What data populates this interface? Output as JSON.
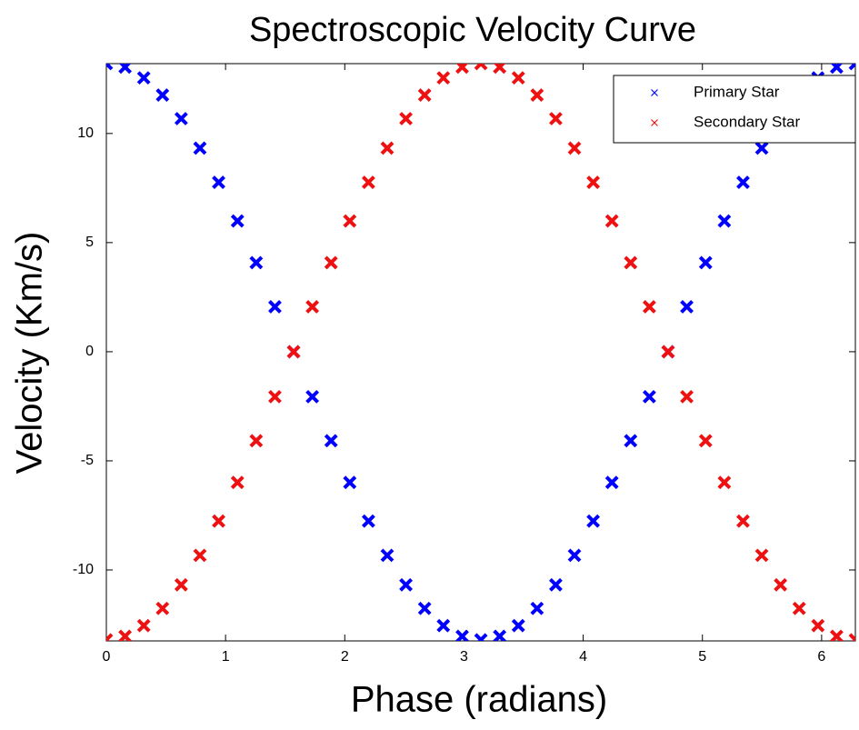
{
  "chart_data": {
    "type": "scatter",
    "title": "Spectroscopic Velocity Curve",
    "x_label": "Phase (radians)",
    "y_label": "Velocity (Km/s)",
    "x": [
      0,
      0.157,
      0.314,
      0.471,
      0.628,
      0.785,
      0.942,
      1.1,
      1.257,
      1.414,
      1.571,
      1.728,
      1.885,
      2.042,
      2.199,
      2.356,
      2.513,
      2.67,
      2.827,
      2.985,
      3.142,
      3.299,
      3.456,
      3.613,
      3.77,
      3.927,
      4.084,
      4.241,
      4.398,
      4.555,
      4.712,
      4.869,
      5.027,
      5.184,
      5.341,
      5.498,
      5.655,
      5.812,
      5.969,
      6.126,
      6.283
    ],
    "series": [
      {
        "name": "Primary Star",
        "color": "#0000ff",
        "values": [
          13.2,
          13.04,
          12.55,
          11.76,
          10.68,
          9.33,
          7.76,
          5.99,
          4.08,
          2.06,
          0,
          -2.06,
          -4.08,
          -5.99,
          -7.76,
          -9.33,
          -10.68,
          -11.76,
          -12.55,
          -13.04,
          -13.2,
          -13.04,
          -12.55,
          -11.76,
          -10.68,
          -9.33,
          -7.76,
          -5.99,
          -4.08,
          -2.06,
          0,
          2.06,
          4.08,
          5.99,
          7.76,
          9.33,
          10.68,
          11.76,
          12.55,
          13.04,
          13.2
        ]
      },
      {
        "name": "Secondary Star",
        "color": "#ee1111",
        "values": [
          -13.2,
          -13.04,
          -12.55,
          -11.76,
          -10.68,
          -9.33,
          -7.76,
          -5.99,
          -4.08,
          -2.06,
          0,
          2.06,
          4.08,
          5.99,
          7.76,
          9.33,
          10.68,
          11.76,
          12.55,
          13.04,
          13.2,
          13.04,
          12.55,
          11.76,
          10.68,
          9.33,
          7.76,
          5.99,
          4.08,
          2.06,
          0,
          -2.06,
          -4.08,
          -5.99,
          -7.76,
          -9.33,
          -10.68,
          -11.76,
          -12.55,
          -13.04,
          -13.2
        ]
      }
    ],
    "xlim": [
      0,
      6.283
    ],
    "xticks": [
      0,
      1,
      2,
      3,
      4,
      5,
      6
    ],
    "ylim": [
      -13.25,
      13.2
    ],
    "yticks": [
      -10,
      -5,
      0,
      5,
      10
    ],
    "grid": false,
    "legend": "upper right"
  }
}
